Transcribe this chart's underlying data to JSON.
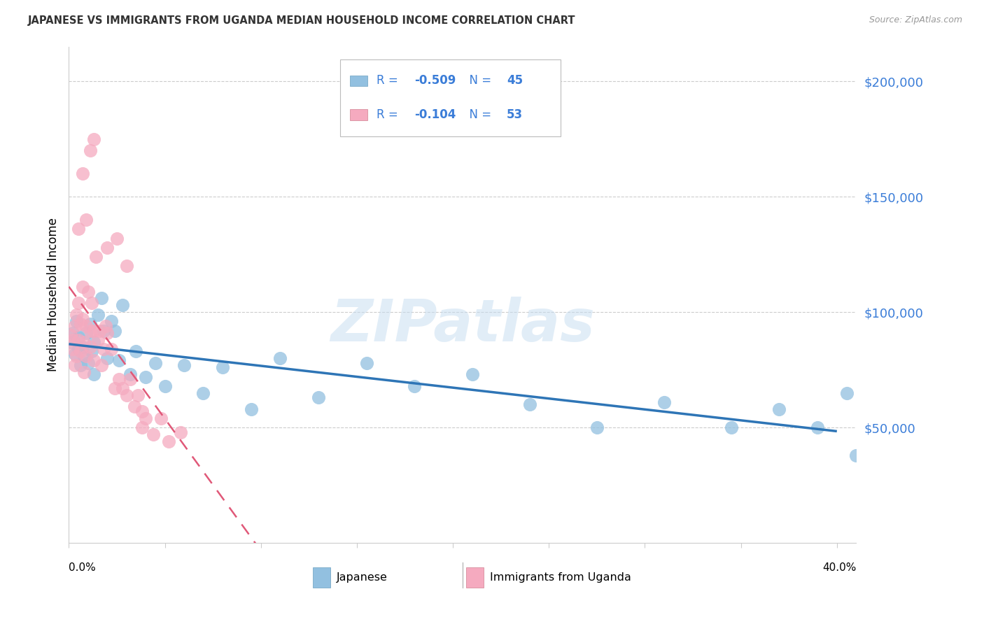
{
  "title": "JAPANESE VS IMMIGRANTS FROM UGANDA MEDIAN HOUSEHOLD INCOME CORRELATION CHART",
  "source": "Source: ZipAtlas.com",
  "ylabel": "Median Household Income",
  "watermark": "ZIPatlas",
  "ytick_vals": [
    50000,
    100000,
    150000,
    200000
  ],
  "ytick_labels": [
    "$50,000",
    "$100,000",
    "$150,000",
    "$200,000"
  ],
  "xlim": [
    0.0,
    0.41
  ],
  "ylim": [
    0,
    215000
  ],
  "japanese_color": "#92C0E0",
  "uganda_color": "#F5AABF",
  "line_japanese_color": "#2E75B6",
  "line_uganda_color": "#E05878",
  "japanese_R": -0.509,
  "japanese_N": 45,
  "uganda_R": -0.104,
  "uganda_N": 53,
  "label_color": "#3B7DD8",
  "background_color": "#FFFFFF",
  "grid_color": "#CCCCCC",
  "title_color": "#333333",
  "source_color": "#999999",
  "japanese_x": [
    0.001,
    0.002,
    0.003,
    0.004,
    0.005,
    0.005,
    0.006,
    0.007,
    0.008,
    0.009,
    0.01,
    0.011,
    0.012,
    0.013,
    0.013,
    0.015,
    0.017,
    0.018,
    0.02,
    0.022,
    0.024,
    0.026,
    0.028,
    0.032,
    0.035,
    0.04,
    0.045,
    0.05,
    0.06,
    0.07,
    0.08,
    0.095,
    0.11,
    0.13,
    0.155,
    0.18,
    0.21,
    0.24,
    0.275,
    0.31,
    0.345,
    0.37,
    0.39,
    0.405,
    0.41
  ],
  "japanese_y": [
    87000,
    91000,
    82000,
    96000,
    84000,
    89000,
    77000,
    85000,
    81000,
    91000,
    78000,
    95000,
    83000,
    73000,
    87000,
    99000,
    106000,
    92000,
    80000,
    96000,
    92000,
    79000,
    103000,
    73000,
    83000,
    72000,
    78000,
    68000,
    77000,
    65000,
    76000,
    58000,
    80000,
    63000,
    78000,
    68000,
    73000,
    60000,
    50000,
    61000,
    50000,
    58000,
    50000,
    65000,
    38000
  ],
  "uganda_x": [
    0.001,
    0.002,
    0.002,
    0.003,
    0.003,
    0.004,
    0.004,
    0.005,
    0.005,
    0.006,
    0.006,
    0.007,
    0.007,
    0.008,
    0.008,
    0.009,
    0.009,
    0.01,
    0.011,
    0.011,
    0.012,
    0.013,
    0.013,
    0.014,
    0.015,
    0.016,
    0.017,
    0.018,
    0.019,
    0.02,
    0.022,
    0.024,
    0.026,
    0.028,
    0.03,
    0.032,
    0.034,
    0.036,
    0.038,
    0.04,
    0.044,
    0.048,
    0.052,
    0.058,
    0.005,
    0.007,
    0.009,
    0.011,
    0.013,
    0.02,
    0.025,
    0.03,
    0.038
  ],
  "uganda_y": [
    90000,
    84000,
    88000,
    94000,
    77000,
    99000,
    81000,
    104000,
    88000,
    95000,
    83000,
    111000,
    97000,
    87000,
    74000,
    94000,
    81000,
    109000,
    85000,
    92000,
    104000,
    79000,
    92000,
    124000,
    88000,
    92000,
    77000,
    84000,
    94000,
    91000,
    84000,
    67000,
    71000,
    67000,
    64000,
    71000,
    59000,
    64000,
    57000,
    54000,
    47000,
    54000,
    44000,
    48000,
    136000,
    160000,
    140000,
    170000,
    175000,
    128000,
    132000,
    120000,
    50000
  ]
}
